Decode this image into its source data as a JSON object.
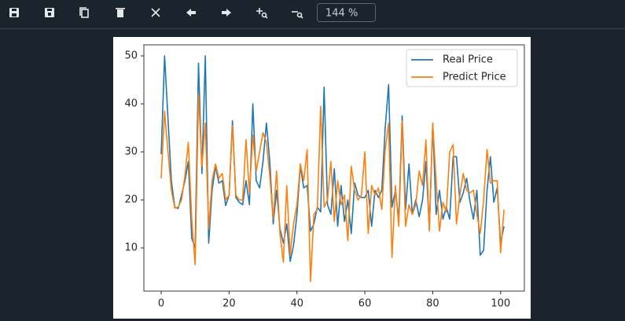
{
  "toolbar": {
    "zoom": "144 %"
  },
  "chart_data": {
    "type": "line",
    "x": [
      0,
      1,
      2,
      3,
      4,
      5,
      6,
      7,
      8,
      9,
      10,
      11,
      12,
      13,
      14,
      15,
      16,
      17,
      18,
      19,
      20,
      21,
      22,
      23,
      24,
      25,
      26,
      27,
      28,
      29,
      30,
      31,
      32,
      33,
      34,
      35,
      36,
      37,
      38,
      39,
      40,
      41,
      42,
      43,
      44,
      45,
      46,
      47,
      48,
      49,
      50,
      51,
      52,
      53,
      54,
      55,
      56,
      57,
      58,
      59,
      60,
      61,
      62,
      63,
      64,
      65,
      66,
      67,
      68,
      69,
      70,
      71,
      72,
      73,
      74,
      75,
      76,
      77,
      78,
      79,
      80,
      81,
      82,
      83,
      84,
      85,
      86,
      87,
      88,
      89,
      90,
      91,
      92,
      93,
      94,
      95,
      96,
      97,
      98,
      99,
      100,
      101
    ],
    "series": [
      {
        "name": "Real Price",
        "color": "#1f77b4",
        "values": [
          29.5,
          50,
          37,
          24,
          18.5,
          18.2,
          21,
          24,
          28,
          12,
          10,
          48.5,
          25.5,
          50,
          11,
          22,
          27,
          23.5,
          24,
          18.8,
          21,
          36.5,
          20.5,
          19.5,
          19,
          24,
          19,
          40,
          24,
          22.5,
          28,
          36,
          28,
          15,
          22,
          14,
          11,
          15,
          7.2,
          10.5,
          17,
          27,
          22.5,
          23,
          13.5,
          15,
          18.5,
          17.5,
          43.5,
          19,
          17,
          26.5,
          14.5,
          23,
          15.5,
          20,
          13,
          23.5,
          21,
          20.5,
          20.5,
          22,
          14.5,
          22,
          20.5,
          22,
          35,
          44,
          18.5,
          22,
          16,
          37.5,
          18,
          27.5,
          17,
          20,
          16.5,
          20,
          28,
          14,
          36,
          17,
          22,
          16,
          18.5,
          16,
          29,
          29,
          19.5,
          21.5,
          24.5,
          19.5,
          16,
          22,
          8.5,
          9.5,
          22,
          29,
          19.5,
          22.5,
          11,
          14.5
        ]
      },
      {
        "name": "Predict Price",
        "color": "#ff7f0e",
        "values": [
          24.5,
          38.5,
          30,
          22,
          18.3,
          18.5,
          20,
          25,
          32,
          16,
          6.5,
          42,
          27,
          36,
          14,
          24,
          27.5,
          24.5,
          25.5,
          20,
          21,
          35.5,
          21,
          20,
          20,
          32.5,
          21.5,
          33.5,
          26,
          30,
          34,
          32,
          25,
          16,
          26,
          13,
          7,
          23,
          8.5,
          15,
          19,
          27.5,
          24,
          30.5,
          3,
          17,
          18,
          39.5,
          18.5,
          20,
          28,
          15.5,
          24,
          19,
          21,
          11.5,
          27,
          22,
          20,
          21,
          30,
          13,
          23,
          21,
          22.5,
          18,
          30.5,
          36,
          8,
          23,
          14.5,
          36.5,
          14.5,
          19,
          17,
          19,
          26,
          23,
          32.5,
          13.5,
          36,
          24,
          13.5,
          19.5,
          17.5,
          30,
          31.5,
          15,
          21,
          25.5,
          22,
          21.5,
          22,
          17,
          13,
          20,
          30.5,
          23.5,
          24,
          24,
          9,
          18
        ]
      }
    ],
    "xlim": [
      -5.1,
      107
    ],
    "ylim": [
      1,
      52.3
    ],
    "xticks": [
      0,
      20,
      40,
      60,
      80,
      100
    ],
    "yticks": [
      10,
      20,
      30,
      40,
      50
    ],
    "grid": false,
    "legend": "upper right"
  }
}
